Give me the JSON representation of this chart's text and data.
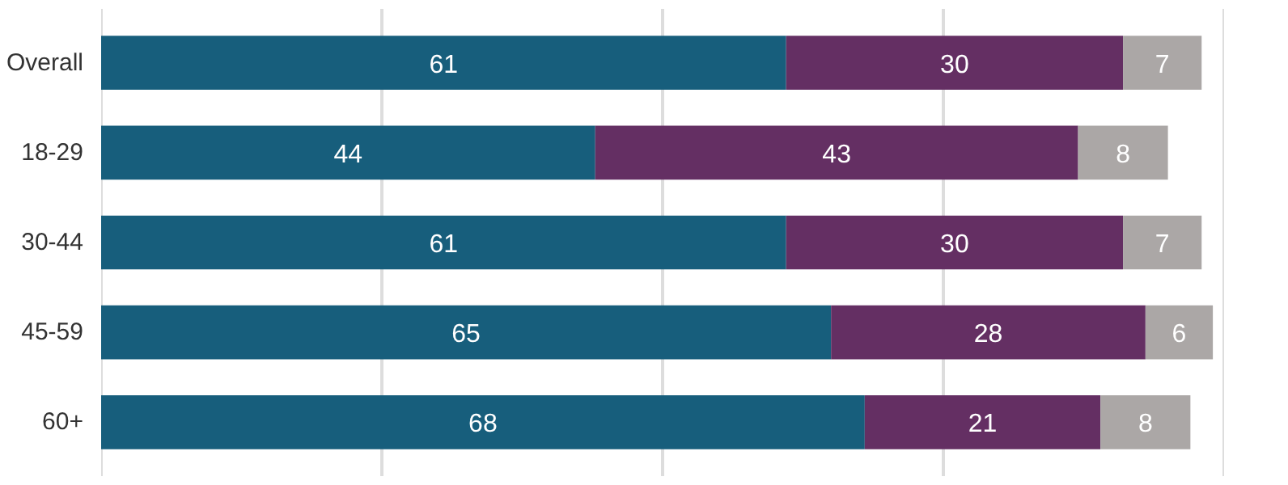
{
  "chart_data": {
    "type": "bar",
    "orientation": "horizontal",
    "stacked": true,
    "data_labels": true,
    "grid": "x",
    "tick_labels": "y",
    "categories": [
      "Overall",
      "18-29",
      "30-44",
      "45-59",
      "60+"
    ],
    "xlim": [
      0,
      100
    ],
    "xticks": [
      {
        "value": 0,
        "label": null
      },
      {
        "value": 25,
        "label": null
      },
      {
        "value": 50,
        "label": null
      },
      {
        "value": 75,
        "label": null
      },
      {
        "value": 100,
        "label": null
      }
    ],
    "series": [
      {
        "color": "#175e7c",
        "values": [
          61,
          44,
          61,
          65,
          68
        ]
      },
      {
        "color": "#642f63",
        "values": [
          30,
          43,
          30,
          28,
          21
        ]
      },
      {
        "color": "#aba7a6",
        "values": [
          7,
          8,
          7,
          6,
          8
        ]
      }
    ]
  }
}
